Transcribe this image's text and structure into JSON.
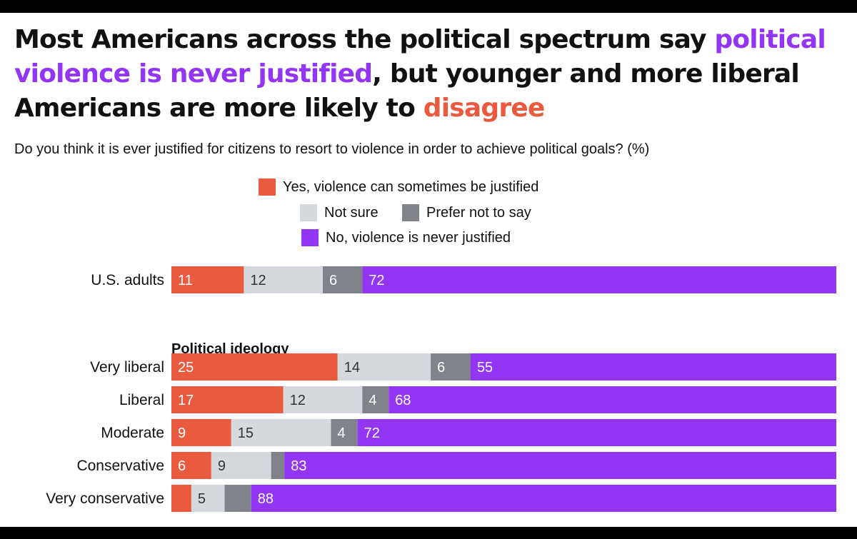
{
  "colors": {
    "yes": "#ea5a3e",
    "not_sure": "#d5d9de",
    "prefer_not": "#808389",
    "no": "#9335f5"
  },
  "title": {
    "part1": "Most Americans across the political spectrum say ",
    "highlight1": "political violence is never justified",
    "part2": ", but younger and more liberal Americans are more likely to ",
    "highlight2": "disagree"
  },
  "subtitle": "Do you think it is ever justified for citizens to resort to violence in order to achieve political goals? (%)",
  "chart_data": {
    "type": "bar",
    "orientation": "horizontal-stacked-100",
    "unit": "%",
    "xlim": [
      0,
      100
    ],
    "legend": [
      {
        "key": "yes",
        "label": "Yes, violence can sometimes be justified"
      },
      {
        "key": "not_sure",
        "label": "Not sure"
      },
      {
        "key": "prefer_not",
        "label": "Prefer not to say"
      },
      {
        "key": "no",
        "label": "No, violence is never justified"
      }
    ],
    "groups": [
      {
        "heading": "",
        "rows": [
          {
            "label": "U.S. adults",
            "values": [
              11,
              12,
              6,
              72
            ],
            "labels": [
              "11",
              "12",
              "6",
              "72"
            ]
          }
        ]
      },
      {
        "heading": "Political ideology",
        "rows": [
          {
            "label": "Very liberal",
            "values": [
              25,
              14,
              6,
              55
            ],
            "labels": [
              "25",
              "14",
              "6",
              "55"
            ]
          },
          {
            "label": "Liberal",
            "values": [
              17,
              12,
              4,
              68
            ],
            "labels": [
              "17",
              "12",
              "4",
              "68"
            ]
          },
          {
            "label": "Moderate",
            "values": [
              9,
              15,
              4,
              72
            ],
            "labels": [
              "9",
              "15",
              "4",
              "72"
            ]
          },
          {
            "label": "Conservative",
            "values": [
              6,
              9,
              2,
              83
            ],
            "labels": [
              "6",
              "9",
              "",
              "83"
            ]
          },
          {
            "label": "Very conservative",
            "values": [
              3,
              5,
              4,
              88
            ],
            "labels": [
              "",
              "5",
              "",
              "88"
            ]
          }
        ]
      }
    ]
  }
}
